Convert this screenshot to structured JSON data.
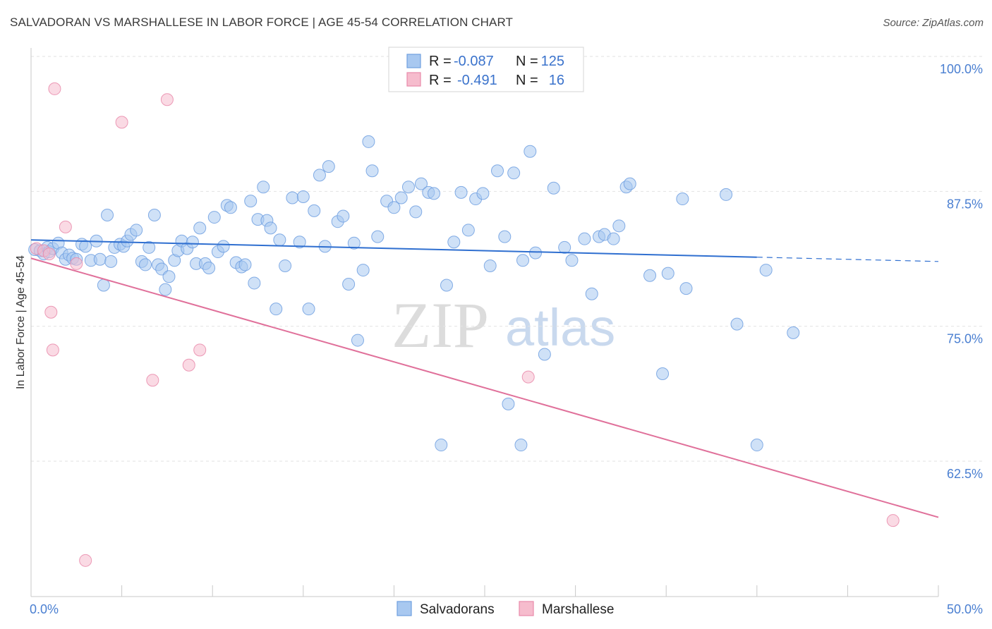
{
  "title": "SALVADORAN VS MARSHALLESE IN LABOR FORCE | AGE 45-54 CORRELATION CHART",
  "source": "Source: ZipAtlas.com",
  "watermark": {
    "zip": "ZIP",
    "atlas": "atlas"
  },
  "chart_data": {
    "type": "scatter",
    "title": "SALVADORAN VS MARSHALLESE IN LABOR FORCE | AGE 45-54 CORRELATION CHART",
    "ylabel": "In Labor Force | Age 45-54",
    "xlabel": "",
    "xlim": [
      0,
      50
    ],
    "ylim": [
      51.5,
      102
    ],
    "x_tick_labels": [
      {
        "value": 0,
        "label": "0.0%"
      },
      {
        "value": 50,
        "label": "50.0%"
      }
    ],
    "y_tick_labels": [
      {
        "value": 100,
        "label": "100.0%"
      },
      {
        "value": 87.5,
        "label": "87.5%"
      },
      {
        "value": 75,
        "label": "75.0%"
      },
      {
        "value": 62.5,
        "label": "62.5%"
      }
    ],
    "legend": [
      {
        "name": "Salvadorans",
        "r_label": "R =",
        "r_value": "-0.087",
        "n_label": "N =",
        "n_value": "125",
        "color": "#a8c8f0",
        "stroke": "#6f9fe0"
      },
      {
        "name": "Marshallese",
        "r_label": "R =",
        "r_value": "-0.491",
        "n_label": "N =",
        "n_value": "16",
        "color": "#f6bccd",
        "stroke": "#e98aaa"
      }
    ],
    "series": [
      {
        "name": "Salvadorans",
        "color": "#a8c8f0",
        "stroke": "#6f9fe0",
        "trend": {
          "x1": 0,
          "y1": 83.0,
          "x2": 40,
          "y2": 81.4,
          "dash_to_x": 50,
          "dash_to_y": 81.0,
          "color": "#2f6fd0"
        },
        "points": [
          [
            0.2,
            82.1
          ],
          [
            0.5,
            82.0
          ],
          [
            0.7,
            81.7
          ],
          [
            0.9,
            82.3
          ],
          [
            1.0,
            81.9
          ],
          [
            1.2,
            82.2
          ],
          [
            1.5,
            82.7
          ],
          [
            1.7,
            81.8
          ],
          [
            1.9,
            81.2
          ],
          [
            2.1,
            81.6
          ],
          [
            2.3,
            81.3
          ],
          [
            2.5,
            81.2
          ],
          [
            2.8,
            82.6
          ],
          [
            3.0,
            82.4
          ],
          [
            3.3,
            81.1
          ],
          [
            3.6,
            82.9
          ],
          [
            3.8,
            81.2
          ],
          [
            4.0,
            78.8
          ],
          [
            4.2,
            85.3
          ],
          [
            4.4,
            81.0
          ],
          [
            4.6,
            82.3
          ],
          [
            4.9,
            82.6
          ],
          [
            5.1,
            82.4
          ],
          [
            5.3,
            82.9
          ],
          [
            5.5,
            83.5
          ],
          [
            5.8,
            83.9
          ],
          [
            6.1,
            81.0
          ],
          [
            6.3,
            80.7
          ],
          [
            6.5,
            82.3
          ],
          [
            6.8,
            85.3
          ],
          [
            7.0,
            80.7
          ],
          [
            7.2,
            80.3
          ],
          [
            7.4,
            78.4
          ],
          [
            7.6,
            79.6
          ],
          [
            7.9,
            81.1
          ],
          [
            8.1,
            82.0
          ],
          [
            8.3,
            82.9
          ],
          [
            8.6,
            82.2
          ],
          [
            8.9,
            82.8
          ],
          [
            9.1,
            80.8
          ],
          [
            9.3,
            84.1
          ],
          [
            9.6,
            80.8
          ],
          [
            9.8,
            80.4
          ],
          [
            10.1,
            85.1
          ],
          [
            10.3,
            81.9
          ],
          [
            10.6,
            82.4
          ],
          [
            10.8,
            86.2
          ],
          [
            11.0,
            86.0
          ],
          [
            11.3,
            80.9
          ],
          [
            11.6,
            80.5
          ],
          [
            11.8,
            80.7
          ],
          [
            12.1,
            86.6
          ],
          [
            12.3,
            79.0
          ],
          [
            12.5,
            84.9
          ],
          [
            12.8,
            87.9
          ],
          [
            13.0,
            84.8
          ],
          [
            13.2,
            84.1
          ],
          [
            13.5,
            76.6
          ],
          [
            13.7,
            83.0
          ],
          [
            14.0,
            80.6
          ],
          [
            14.4,
            86.9
          ],
          [
            14.8,
            82.8
          ],
          [
            15.0,
            87.0
          ],
          [
            15.3,
            76.6
          ],
          [
            15.6,
            85.7
          ],
          [
            15.9,
            89.0
          ],
          [
            16.2,
            82.4
          ],
          [
            16.4,
            89.8
          ],
          [
            16.9,
            84.7
          ],
          [
            17.2,
            85.2
          ],
          [
            17.5,
            78.9
          ],
          [
            17.8,
            82.7
          ],
          [
            18.0,
            73.7
          ],
          [
            18.3,
            80.2
          ],
          [
            18.6,
            92.1
          ],
          [
            18.8,
            89.4
          ],
          [
            19.1,
            83.3
          ],
          [
            19.6,
            86.6
          ],
          [
            20.0,
            86.0
          ],
          [
            20.4,
            86.9
          ],
          [
            20.8,
            87.9
          ],
          [
            21.2,
            85.6
          ],
          [
            21.5,
            88.2
          ],
          [
            21.9,
            87.4
          ],
          [
            22.2,
            87.3
          ],
          [
            22.6,
            64.0
          ],
          [
            22.9,
            78.8
          ],
          [
            23.3,
            82.8
          ],
          [
            23.7,
            87.4
          ],
          [
            24.1,
            83.9
          ],
          [
            24.5,
            86.8
          ],
          [
            24.9,
            87.3
          ],
          [
            25.3,
            80.6
          ],
          [
            25.7,
            89.4
          ],
          [
            26.1,
            83.3
          ],
          [
            26.3,
            67.8
          ],
          [
            26.6,
            89.2
          ],
          [
            27.1,
            81.1
          ],
          [
            27.5,
            91.2
          ],
          [
            27.8,
            81.8
          ],
          [
            28.3,
            72.4
          ],
          [
            28.8,
            87.8
          ],
          [
            29.4,
            82.3
          ],
          [
            29.8,
            81.1
          ],
          [
            30.5,
            83.1
          ],
          [
            30.9,
            78.0
          ],
          [
            31.3,
            83.3
          ],
          [
            31.6,
            83.5
          ],
          [
            32.1,
            83.1
          ],
          [
            32.4,
            84.3
          ],
          [
            32.8,
            87.9
          ],
          [
            33.0,
            88.2
          ],
          [
            34.1,
            79.7
          ],
          [
            34.8,
            70.6
          ],
          [
            35.1,
            79.9
          ],
          [
            35.9,
            86.8
          ],
          [
            36.1,
            78.5
          ],
          [
            38.3,
            87.2
          ],
          [
            38.9,
            75.2
          ],
          [
            40.0,
            64.0
          ],
          [
            40.5,
            80.2
          ],
          [
            42.0,
            74.4
          ],
          [
            27.0,
            64.0
          ]
        ]
      },
      {
        "name": "Marshallese",
        "color": "#f6bccd",
        "stroke": "#e98aaa",
        "trend": {
          "x1": 0,
          "y1": 81.3,
          "x2": 50,
          "y2": 57.3,
          "color": "#e0709a"
        },
        "points": [
          [
            0.3,
            82.2
          ],
          [
            0.7,
            82.0
          ],
          [
            1.0,
            81.7
          ],
          [
            1.1,
            76.3
          ],
          [
            1.2,
            72.8
          ],
          [
            1.3,
            97.0
          ],
          [
            1.9,
            84.2
          ],
          [
            2.5,
            80.8
          ],
          [
            3.0,
            53.3
          ],
          [
            5.0,
            93.9
          ],
          [
            6.7,
            70.0
          ],
          [
            7.5,
            96.0
          ],
          [
            8.7,
            71.4
          ],
          [
            9.3,
            72.8
          ],
          [
            27.4,
            70.3
          ],
          [
            47.5,
            57.0
          ]
        ]
      }
    ]
  }
}
